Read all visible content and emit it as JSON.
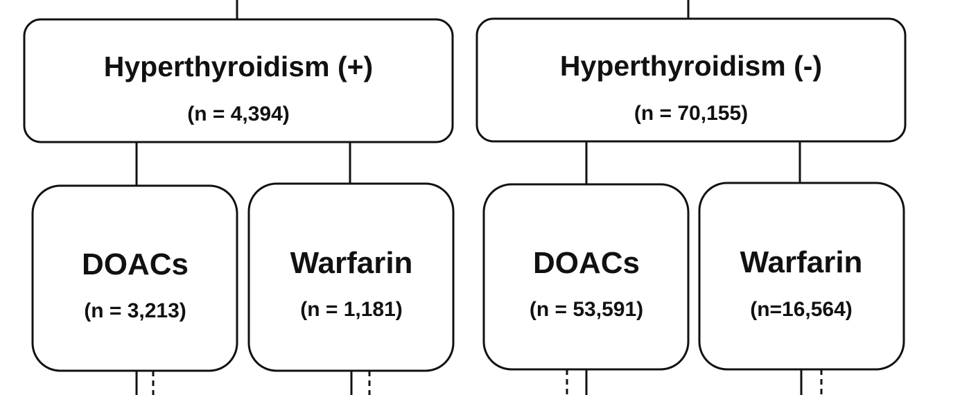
{
  "groups": [
    {
      "title": "Hyperthyroidism (+)",
      "count": "(n = 4,394)",
      "children": [
        {
          "title": "DOACs",
          "count": "(n = 3,213)"
        },
        {
          "title": "Warfarin",
          "count": "(n = 1,181)"
        }
      ]
    },
    {
      "title": "Hyperthyroidism (-)",
      "count": "(n = 70,155)",
      "children": [
        {
          "title": "DOACs",
          "count": "(n = 53,591)"
        },
        {
          "title": "Warfarin",
          "count": "(n=16,564)"
        }
      ]
    }
  ],
  "colors": {
    "stroke": "#111111",
    "fill": "#ffffff",
    "text": "#111111"
  }
}
